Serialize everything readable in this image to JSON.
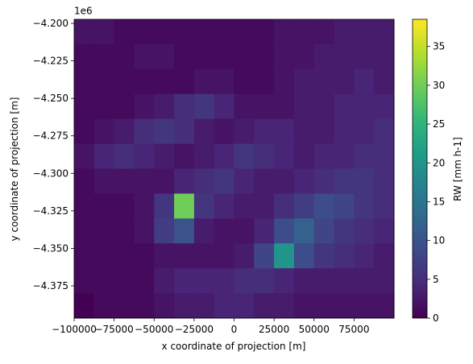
{
  "chart_data": {
    "type": "heatmap",
    "colormap": "viridis",
    "xlabel": "x coordinate of projection [m]",
    "ylabel": "y coordinate of projection [m]",
    "offset_label": "1e6",
    "colorbar_label": "RW [mm h-1]",
    "xlim": [
      -100000,
      100000
    ],
    "ylim": [
      -4396500,
      -4197300
    ],
    "clim": [
      0,
      38.5
    ],
    "xticks": [
      {
        "value": -100000,
        "label": "−100000"
      },
      {
        "value": -75000,
        "label": "−75000"
      },
      {
        "value": -50000,
        "label": "−50000"
      },
      {
        "value": -25000,
        "label": "−25000"
      },
      0,
      25000,
      50000,
      75000
    ],
    "yticks": [
      {
        "value": -4375000,
        "label": "−4.375"
      },
      {
        "value": -4350000,
        "label": "−4.350"
      },
      {
        "value": -4325000,
        "label": "−4.325"
      },
      {
        "value": -4300000,
        "label": "−4.300"
      },
      {
        "value": -4275000,
        "label": "−4.275"
      },
      {
        "value": -4250000,
        "label": "−4.250"
      },
      {
        "value": -4225000,
        "label": "−4.225"
      },
      {
        "value": -4200000,
        "label": "−4.200"
      }
    ],
    "cticks": [
      0,
      5,
      10,
      15,
      20,
      25,
      30,
      35
    ],
    "x": [
      -93750,
      -81250,
      -68750,
      -56250,
      -43750,
      -31250,
      -18750,
      -6250,
      6250,
      18750,
      31250,
      43750,
      56250,
      68750,
      81250,
      93750
    ],
    "y": [
      -4205600,
      -4222200,
      -4238800,
      -4255400,
      -4272000,
      -4288600,
      -4305200,
      -4321800,
      -4338400,
      -4355000,
      -4371600,
      -4388200
    ],
    "z": [
      [
        2,
        2,
        1,
        1,
        1,
        1,
        1,
        1,
        1,
        1,
        2,
        2,
        2,
        3,
        3,
        3
      ],
      [
        1,
        1,
        1,
        2,
        2,
        1,
        1,
        1,
        1,
        1,
        2,
        2,
        3,
        3,
        3,
        3
      ],
      [
        1,
        1,
        1,
        1,
        1,
        1,
        2,
        2,
        1,
        1,
        2,
        3,
        3,
        3,
        4,
        3
      ],
      [
        1,
        1,
        1,
        2,
        3,
        5,
        6,
        4,
        2,
        2,
        2,
        3,
        3,
        4,
        4,
        4
      ],
      [
        1,
        2,
        3,
        5,
        6,
        5,
        3,
        2,
        3,
        4,
        4,
        3,
        3,
        4,
        4,
        5
      ],
      [
        2,
        4,
        5,
        4,
        3,
        2,
        3,
        4,
        6,
        5,
        4,
        3,
        4,
        4,
        5,
        5
      ],
      [
        1,
        2,
        2,
        2,
        2,
        4,
        5,
        6,
        4,
        3,
        3,
        4,
        5,
        6,
        6,
        5
      ],
      [
        1,
        1,
        1,
        2,
        6,
        30,
        6,
        4,
        3,
        3,
        5,
        7,
        9,
        8,
        6,
        5
      ],
      [
        1,
        1,
        1,
        2,
        7,
        10,
        3,
        2,
        2,
        4,
        9,
        12,
        8,
        6,
        5,
        4
      ],
      [
        1,
        1,
        1,
        1,
        2,
        2,
        2,
        2,
        3,
        8,
        20,
        9,
        6,
        5,
        4,
        3
      ],
      [
        1,
        1,
        1,
        1,
        3,
        4,
        4,
        4,
        5,
        5,
        4,
        3,
        3,
        3,
        3,
        3
      ],
      [
        0,
        1,
        1,
        1,
        2,
        3,
        3,
        4,
        4,
        3,
        3,
        2,
        2,
        2,
        2,
        2
      ]
    ]
  }
}
